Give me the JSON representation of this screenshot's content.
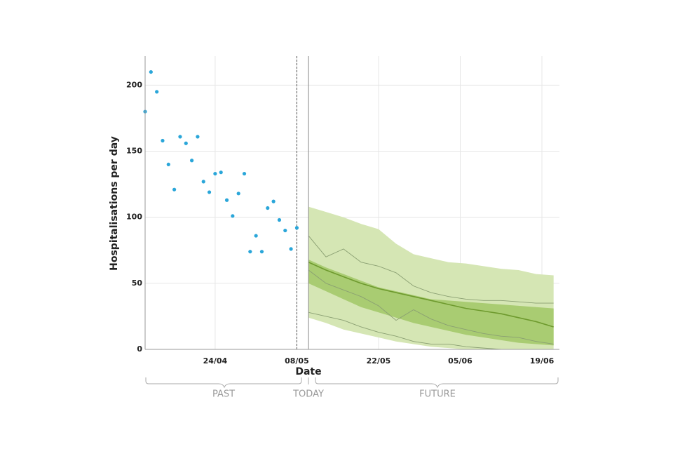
{
  "chart_data": {
    "type": "forecast",
    "x_label": "Date",
    "y_label": "Hospitalisations per day",
    "xlim": [
      "12/04",
      "22/06"
    ],
    "xticks": [
      "24/04",
      "08/05",
      "22/05",
      "05/06",
      "19/06"
    ],
    "ylim": [
      0,
      222
    ],
    "yticks": [
      0,
      50,
      100,
      150,
      200
    ],
    "grid": true,
    "observed": {
      "color": "#2aa6d9",
      "x": [
        "12/04",
        "13/04",
        "14/04",
        "15/04",
        "16/04",
        "17/04",
        "18/04",
        "19/04",
        "20/04",
        "21/04",
        "22/04",
        "23/04",
        "24/04",
        "25/04",
        "26/04",
        "27/04",
        "28/04",
        "29/04",
        "30/04",
        "01/05",
        "02/05",
        "03/05",
        "04/05",
        "05/05",
        "06/05",
        "07/05",
        "08/05"
      ],
      "values": [
        180,
        210,
        195,
        158,
        140,
        121,
        161,
        156,
        143,
        161,
        127,
        119,
        133,
        134,
        113,
        101,
        118,
        133,
        74,
        86,
        74,
        107,
        112,
        98,
        90,
        76,
        92
      ]
    },
    "forecast": {
      "x": [
        "10/05",
        "13/05",
        "16/05",
        "19/05",
        "22/05",
        "25/05",
        "28/05",
        "31/05",
        "03/06",
        "06/06",
        "09/06",
        "12/06",
        "15/06",
        "18/06",
        "21/06"
      ],
      "bands": [
        {
          "color": "#d5e6b4",
          "upper": [
            108,
            104,
            100,
            95,
            91,
            80,
            72,
            69,
            66,
            65,
            63,
            61,
            60,
            57,
            56
          ],
          "lower": [
            24,
            20,
            15,
            12,
            9,
            6,
            4,
            2,
            1,
            0,
            0,
            0,
            0,
            0,
            0
          ]
        },
        {
          "color": "#a9cc72",
          "upper": [
            68,
            62,
            57,
            52,
            47,
            44,
            41,
            38,
            37,
            36,
            35,
            34,
            33,
            32,
            31
          ],
          "lower": [
            50,
            44,
            38,
            32,
            28,
            24,
            20,
            17,
            14,
            11,
            9,
            7,
            5,
            4,
            3
          ]
        }
      ],
      "median": {
        "color": "#6e9a2e",
        "values": [
          66,
          60,
          55,
          50,
          46,
          43,
          40,
          37,
          34,
          31,
          29,
          27,
          24,
          21,
          17
        ]
      },
      "samples": [
        {
          "color": "#8a9f72",
          "values": [
            86,
            70,
            76,
            66,
            63,
            58,
            48,
            43,
            40,
            38,
            37,
            37,
            36,
            35,
            35
          ]
        },
        {
          "color": "#8a9f72",
          "values": [
            28,
            25,
            22,
            17,
            13,
            10,
            6,
            4,
            4,
            2,
            1,
            0,
            0,
            0,
            0
          ]
        },
        {
          "color": "#8a9f72",
          "values": [
            60,
            50,
            45,
            40,
            33,
            22,
            30,
            23,
            18,
            15,
            12,
            10,
            9,
            6,
            4
          ]
        }
      ]
    },
    "period_labels": {
      "past": "PAST",
      "today": "TODAY",
      "future": "FUTURE"
    }
  }
}
